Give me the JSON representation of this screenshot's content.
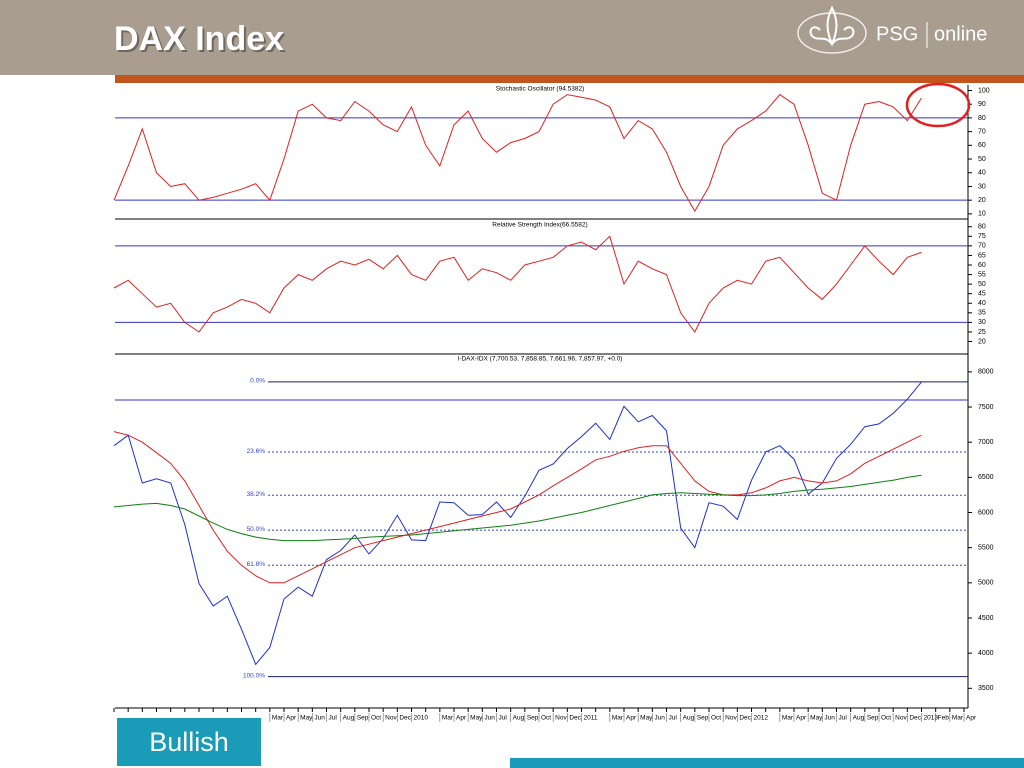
{
  "header": {
    "title": "DAX Index",
    "logo_left": "PSG",
    "logo_right": "online"
  },
  "button": "Bullish",
  "chart_data": [
    {
      "type": "line",
      "title": "Stochastic Oscillator (94.5382)",
      "ylim": [
        7,
        104
      ],
      "yticks": [
        10,
        20,
        30,
        40,
        50,
        60,
        70,
        80,
        90,
        100
      ],
      "levels": [
        20,
        80
      ],
      "series": [
        {
          "color": "#e02020",
          "values": [
            20,
            45,
            72,
            40,
            30,
            32,
            20,
            22,
            25,
            28,
            32,
            20,
            50,
            85,
            90,
            80,
            78,
            92,
            85,
            75,
            70,
            88,
            60,
            45,
            75,
            85,
            65,
            55,
            62,
            65,
            70,
            90,
            97,
            95,
            93,
            88,
            65,
            78,
            72,
            55,
            30,
            12,
            30,
            60,
            72,
            78,
            85,
            97,
            90,
            60,
            25,
            20,
            60,
            90,
            92,
            88,
            78,
            94.5,
            null,
            null,
            null
          ]
        }
      ]
    },
    {
      "type": "line",
      "title": "Relative Strength Index(66.5582)",
      "ylim": [
        14,
        83
      ],
      "yticks": [
        20,
        25,
        30,
        35,
        40,
        45,
        50,
        55,
        60,
        65,
        70,
        75,
        80
      ],
      "levels": [
        30,
        70
      ],
      "series": [
        {
          "color": "#e02020",
          "values": [
            48,
            52,
            45,
            38,
            40,
            30,
            25,
            35,
            38,
            42,
            40,
            35,
            48,
            55,
            52,
            58,
            62,
            60,
            63,
            58,
            65,
            55,
            52,
            62,
            64,
            52,
            58,
            56,
            52,
            60,
            62,
            64,
            70,
            72,
            68,
            75,
            50,
            62,
            58,
            55,
            35,
            25,
            40,
            48,
            52,
            50,
            62,
            64,
            56,
            48,
            42,
            50,
            60,
            70,
            62,
            55,
            64,
            66.6,
            null,
            null,
            null
          ]
        }
      ]
    },
    {
      "type": "line",
      "title": "I-DAX-IDX (7,700.53, 7,858.85, 7,661.96, 7,857.97, +0.0)",
      "categories": [
        null,
        null,
        null,
        null,
        null,
        null,
        null,
        null,
        null,
        null,
        null,
        "Mar",
        "Apr",
        "May",
        "Jun",
        "Jul",
        "Aug",
        "Sep",
        "Oct",
        "Nov",
        "Dec",
        "2010",
        null,
        "Mar",
        "Apr",
        "May",
        "Jun",
        "Jul",
        "Aug",
        "Sep",
        "Oct",
        "Nov",
        "Dec",
        "2011",
        null,
        "Mar",
        "Apr",
        "May",
        "Jun",
        "Jul",
        "Aug",
        "Sep",
        "Oct",
        "Nov",
        "Dec",
        "2012",
        null,
        "Mar",
        "Apr",
        "May",
        "Jun",
        "Jul",
        "Aug",
        "Sep",
        "Oct",
        "Nov",
        "Dec",
        "2013",
        "Feb",
        "Mar",
        "Apr"
      ],
      "ylim": [
        3220,
        8240
      ],
      "yticks": [
        3500,
        4000,
        4500,
        5000,
        5500,
        6000,
        6500,
        7000,
        7500,
        8000
      ],
      "levels": [
        7600
      ],
      "fib_levels": [
        {
          "value": 7858,
          "label": "0.0%"
        },
        {
          "value": 6860,
          "label": "23.6%"
        },
        {
          "value": 6245,
          "label": "38.2%"
        },
        {
          "value": 5750,
          "label": "50.0%"
        },
        {
          "value": 5250,
          "label": "61.8%"
        },
        {
          "value": 3666,
          "label": "100.0%"
        }
      ],
      "series": [
        {
          "color": "#1f2fd0",
          "values": [
            6950,
            7100,
            6420,
            6480,
            6420,
            5830,
            4990,
            4670,
            4810,
            4340,
            3840,
            4080,
            4770,
            4940,
            4810,
            5330,
            5460,
            5680,
            5410,
            5630,
            5960,
            5610,
            5600,
            6150,
            6140,
            5960,
            5970,
            6150,
            5930,
            6230,
            6600,
            6690,
            6910,
            7080,
            7270,
            7040,
            7510,
            7290,
            7380,
            7160,
            5780,
            5500,
            6140,
            6090,
            5900,
            6460,
            6860,
            6950,
            6760,
            6260,
            6420,
            6770,
            6970,
            7220,
            7260,
            7410,
            7610,
            7858,
            null,
            null,
            null
          ]
        },
        {
          "color": "#e02020",
          "values": [
            7150,
            7100,
            7000,
            6850,
            6700,
            6450,
            6100,
            5750,
            5450,
            5250,
            5100,
            5000,
            5000,
            5100,
            5200,
            5300,
            5400,
            5500,
            5550,
            5600,
            5650,
            5700,
            5750,
            5800,
            5850,
            5900,
            5950,
            6000,
            6050,
            6150,
            6250,
            6380,
            6500,
            6620,
            6750,
            6800,
            6870,
            6920,
            6950,
            6950,
            6700,
            6450,
            6300,
            6250,
            6250,
            6280,
            6350,
            6450,
            6500,
            6450,
            6420,
            6450,
            6550,
            6700,
            6800,
            6900,
            7000,
            7100,
            null,
            null,
            null
          ]
        },
        {
          "color": "#108010",
          "values": [
            6080,
            6100,
            6120,
            6130,
            6100,
            6050,
            5950,
            5850,
            5760,
            5700,
            5650,
            5620,
            5600,
            5600,
            5600,
            5610,
            5620,
            5630,
            5650,
            5660,
            5670,
            5680,
            5700,
            5720,
            5740,
            5760,
            5780,
            5800,
            5820,
            5850,
            5880,
            5920,
            5960,
            6000,
            6050,
            6100,
            6150,
            6200,
            6250,
            6270,
            6280,
            6270,
            6260,
            6250,
            6240,
            6240,
            6250,
            6270,
            6300,
            6320,
            6330,
            6350,
            6370,
            6400,
            6430,
            6460,
            6500,
            6530,
            null,
            null,
            null
          ]
        }
      ]
    }
  ]
}
